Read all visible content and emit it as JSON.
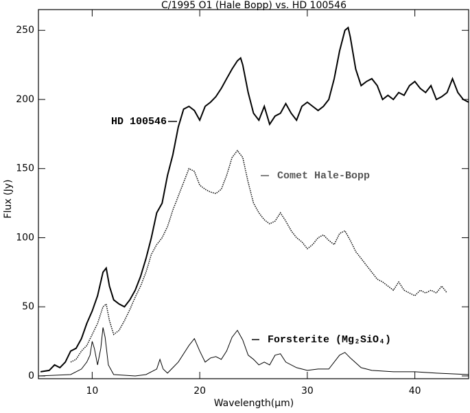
{
  "chart_data": {
    "type": "line",
    "title": "C/1995 O1 (Hale Bopp)  vs.  HD 100546",
    "x_label": "Wavelength(μm)",
    "y_label": "Flux (Jy)",
    "xlim": [
      5,
      45
    ],
    "ylim": [
      -2,
      265
    ],
    "xticks": [
      10,
      20,
      30,
      40
    ],
    "yticks": [
      0,
      50,
      100,
      150,
      200,
      250
    ],
    "series": [
      {
        "name": "HD 100546",
        "color": "#000000",
        "line_style": "solid",
        "line_width": 2,
        "x": [
          5.2,
          6,
          6.5,
          7,
          7.5,
          8,
          8.5,
          9,
          9.5,
          10,
          10.5,
          11,
          11.3,
          11.6,
          12,
          12.5,
          13,
          13.5,
          14,
          14.5,
          15,
          15.5,
          16,
          16.5,
          17,
          17.5,
          18,
          18.5,
          19,
          19.5,
          20,
          20.5,
          21,
          21.5,
          22,
          22.5,
          23,
          23.5,
          23.8,
          24,
          24.5,
          25,
          25.5,
          26,
          26.5,
          27,
          27.5,
          28,
          28.5,
          29,
          29.5,
          30,
          30.5,
          31,
          31.5,
          32,
          32.5,
          33,
          33.5,
          33.8,
          34,
          34.5,
          35,
          35.5,
          36,
          36.5,
          37,
          37.5,
          38,
          38.5,
          39,
          39.5,
          40,
          40.5,
          41,
          41.5,
          42,
          42.5,
          43,
          43.5,
          44,
          44.5,
          45
        ],
        "values": [
          3,
          4,
          8,
          6,
          10,
          18,
          20,
          27,
          38,
          47,
          58,
          75,
          78,
          65,
          55,
          52,
          50,
          55,
          62,
          72,
          85,
          100,
          118,
          125,
          145,
          160,
          180,
          193,
          195,
          192,
          185,
          195,
          198,
          202,
          208,
          215,
          222,
          228,
          230,
          225,
          205,
          190,
          185,
          195,
          182,
          188,
          190,
          197,
          190,
          185,
          195,
          198,
          195,
          192,
          195,
          200,
          215,
          235,
          250,
          252,
          245,
          222,
          210,
          213,
          215,
          210,
          200,
          203,
          200,
          205,
          203,
          210,
          213,
          208,
          205,
          210,
          200,
          202,
          205,
          215,
          205,
          200,
          198
        ]
      },
      {
        "name": "Comet Hale-Bopp",
        "color": "#000000",
        "label_color": "#555555",
        "line_style": "dotted",
        "line_width": 1.5,
        "x": [
          8,
          8.5,
          9,
          9.5,
          10,
          10.5,
          11,
          11.3,
          11.6,
          12,
          12.5,
          13,
          13.5,
          14,
          14.5,
          15,
          15.5,
          16,
          16.5,
          17,
          17.5,
          18,
          18.5,
          19,
          19.5,
          20,
          20.5,
          21,
          21.5,
          22,
          22.5,
          23,
          23.5,
          24,
          24.5,
          25,
          25.5,
          26,
          26.5,
          27,
          27.5,
          28,
          28.5,
          29,
          29.5,
          30,
          30.5,
          31,
          31.5,
          32,
          32.5,
          33,
          33.5,
          34,
          34.5,
          35,
          35.5,
          36,
          36.5,
          37,
          37.5,
          38,
          38.5,
          39,
          39.5,
          40,
          40.5,
          41,
          41.5,
          42,
          42.5,
          43
        ],
        "values": [
          10,
          12,
          18,
          22,
          30,
          38,
          50,
          52,
          40,
          30,
          33,
          40,
          48,
          57,
          65,
          75,
          88,
          95,
          100,
          108,
          120,
          130,
          140,
          150,
          148,
          138,
          135,
          133,
          132,
          135,
          145,
          158,
          163,
          158,
          140,
          125,
          118,
          113,
          110,
          112,
          118,
          112,
          105,
          100,
          97,
          92,
          95,
          100,
          102,
          98,
          95,
          103,
          105,
          98,
          90,
          85,
          80,
          75,
          70,
          68,
          65,
          62,
          68,
          62,
          60,
          58,
          62,
          60,
          62,
          60,
          65,
          60
        ]
      },
      {
        "name": "Forsterite (Mg₂SiO₄)",
        "color": "#000000",
        "line_style": "solid",
        "line_width": 1,
        "x": [
          5,
          8,
          9,
          9.5,
          9.8,
          10,
          10.2,
          10.5,
          10.8,
          11,
          11.2,
          11.5,
          12,
          14,
          15,
          16,
          16.3,
          16.6,
          17,
          18,
          19,
          19.5,
          20,
          20.5,
          21,
          21.5,
          22,
          22.5,
          23,
          23.5,
          24,
          24.5,
          25,
          25.5,
          26,
          26.5,
          27,
          27.5,
          28,
          29,
          30,
          31,
          32,
          33,
          33.5,
          34,
          35,
          36,
          38,
          40,
          42,
          45
        ],
        "values": [
          0,
          1,
          5,
          10,
          15,
          25,
          20,
          8,
          20,
          35,
          28,
          8,
          1,
          0,
          1,
          5,
          12,
          5,
          2,
          10,
          22,
          27,
          18,
          10,
          13,
          14,
          12,
          18,
          28,
          33,
          26,
          15,
          12,
          8,
          10,
          8,
          15,
          16,
          10,
          6,
          4,
          5,
          5,
          15,
          17,
          13,
          6,
          4,
          3,
          3,
          2,
          1
        ]
      }
    ]
  }
}
